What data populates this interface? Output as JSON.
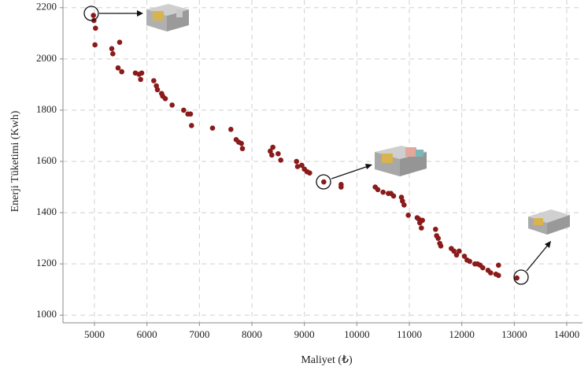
{
  "chart_data": {
    "type": "scatter",
    "x_label": "Maliyet (₺)",
    "y_label": "Enerji Tüketimi (Kwh)",
    "color": "#8b1a1a",
    "grid": true,
    "xlim": [
      4400,
      14300
    ],
    "ylim": [
      970,
      2230
    ],
    "xticks": [
      5000,
      6000,
      7000,
      8000,
      9000,
      10000,
      11000,
      12000,
      13000,
      14000
    ],
    "yticks": [
      1000,
      1200,
      1400,
      1600,
      1800,
      2000,
      2200
    ],
    "x": [
      4980,
      4990,
      5020,
      5010,
      5330,
      5350,
      5480,
      5450,
      5520,
      5780,
      5850,
      5880,
      5900,
      6130,
      6180,
      6200,
      6280,
      6300,
      6350,
      6480,
      6700,
      6780,
      6830,
      6850,
      7250,
      7600,
      7700,
      7750,
      7800,
      7820,
      8350,
      8400,
      8380,
      8500,
      8550,
      8850,
      8870,
      8950,
      9000,
      9050,
      9100,
      9370,
      9700,
      9700,
      10350,
      10400,
      10500,
      10600,
      10650,
      10700,
      10850,
      10870,
      10900,
      10980,
      11150,
      11180,
      11200,
      11230,
      11250,
      11500,
      11520,
      11550,
      11580,
      11600,
      11800,
      11850,
      11900,
      11950,
      12050,
      12100,
      12150,
      12250,
      12300,
      12350,
      12400,
      12500,
      12550,
      12650,
      12700,
      12700,
      13050
    ],
    "values": [
      2170,
      2150,
      2120,
      2055,
      2040,
      2020,
      2065,
      1965,
      1950,
      1945,
      1940,
      1920,
      1945,
      1915,
      1895,
      1880,
      1865,
      1855,
      1845,
      1820,
      1800,
      1785,
      1785,
      1740,
      1730,
      1725,
      1685,
      1675,
      1670,
      1650,
      1640,
      1655,
      1625,
      1630,
      1605,
      1600,
      1580,
      1585,
      1570,
      1560,
      1555,
      1520,
      1510,
      1500,
      1500,
      1490,
      1480,
      1475,
      1475,
      1465,
      1460,
      1445,
      1430,
      1390,
      1380,
      1375,
      1360,
      1340,
      1370,
      1335,
      1310,
      1300,
      1280,
      1270,
      1260,
      1250,
      1235,
      1250,
      1230,
      1215,
      1210,
      1200,
      1200,
      1195,
      1185,
      1175,
      1165,
      1160,
      1195,
      1155,
      1145
    ]
  }
}
